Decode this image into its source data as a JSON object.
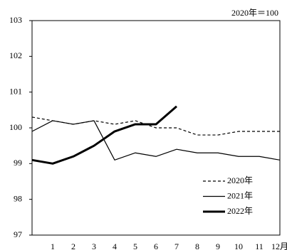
{
  "chart_data": {
    "type": "line",
    "annotation": "2020年＝100",
    "categories": [
      null,
      "1",
      "2",
      "3",
      "4",
      "5",
      "6",
      "7",
      "8",
      "9",
      "10",
      "11",
      "12月"
    ],
    "series": [
      {
        "name": "2020年",
        "color": "#000000",
        "line_width": 1.2,
        "dash": "4,3",
        "values": [
          100.3,
          100.2,
          100.1,
          100.2,
          100.1,
          100.2,
          100.0,
          100.0,
          99.8,
          99.8,
          99.9,
          99.9,
          99.9
        ]
      },
      {
        "name": "2021年",
        "color": "#000000",
        "line_width": 1.2,
        "dash": "none",
        "values": [
          99.9,
          100.2,
          100.1,
          100.2,
          99.1,
          99.3,
          99.2,
          99.4,
          99.3,
          99.3,
          99.2,
          99.2,
          99.1
        ]
      },
      {
        "name": "2022年",
        "color": "#000000",
        "line_width": 3,
        "dash": "none",
        "values": [
          99.1,
          99.0,
          99.2,
          99.5,
          99.9,
          100.1,
          100.1,
          100.6,
          null,
          null,
          null,
          null,
          null
        ]
      }
    ],
    "ylim": [
      97,
      103
    ],
    "yticks": [
      97,
      98,
      99,
      100,
      101,
      102,
      103
    ],
    "grid": false
  }
}
